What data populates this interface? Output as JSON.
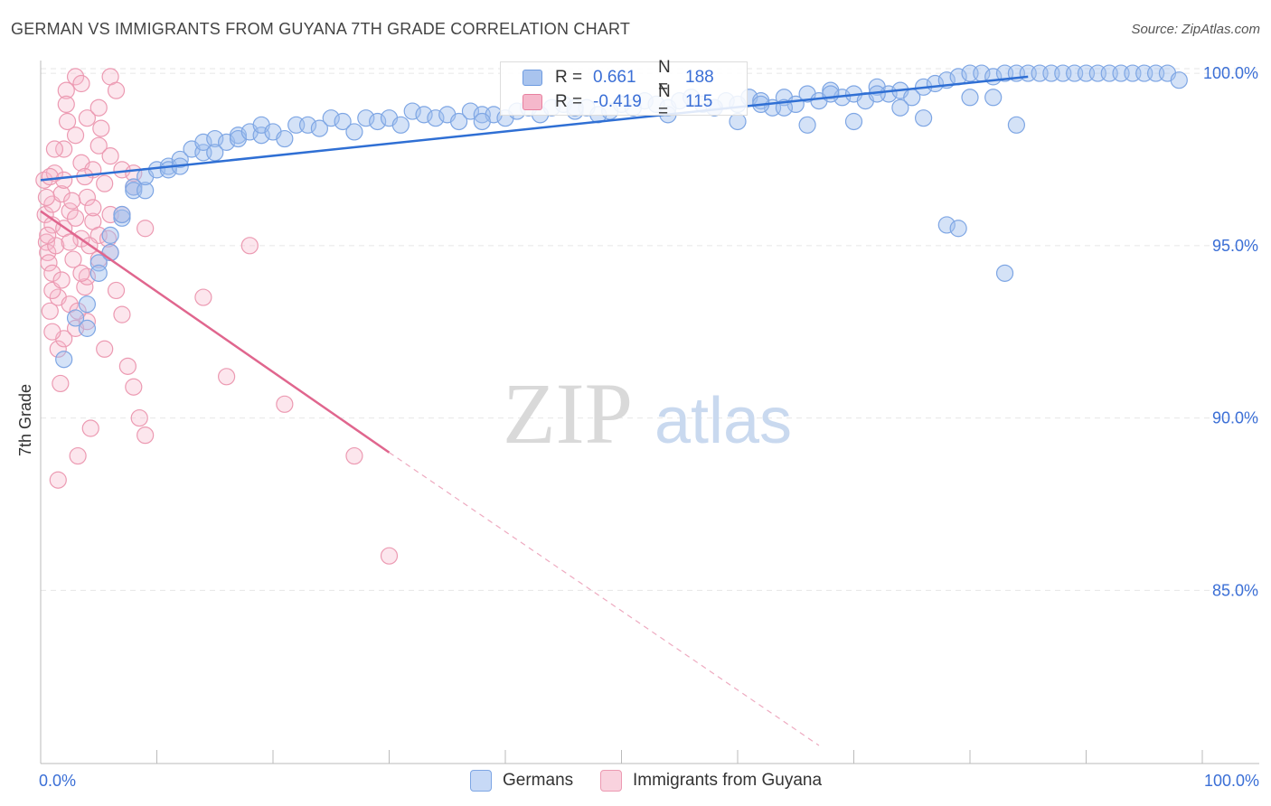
{
  "title": "GERMAN VS IMMIGRANTS FROM GUYANA 7TH GRADE CORRELATION CHART",
  "source": "Source: ZipAtlas.com",
  "watermark": {
    "zip": "ZIP",
    "atlas": "atlas"
  },
  "legend": {
    "rows": [
      {
        "r_label": "R =",
        "r_value": "0.661",
        "n_label": "N =",
        "n_value": "188",
        "color": "#a9c4ee",
        "stroke": "#6e9be0"
      },
      {
        "r_label": "R =",
        "r_value": "-0.419",
        "n_label": "N =",
        "n_value": "115",
        "color": "#f5b8cb",
        "stroke": "#e8809f"
      }
    ]
  },
  "bottom_legend": [
    {
      "label": "Germans",
      "color": "#c7d9f6",
      "stroke": "#7ea6e4"
    },
    {
      "label": "Immigrants from Guyana",
      "color": "#f9d2de",
      "stroke": "#ec9ab2"
    }
  ],
  "chart_data": {
    "type": "scatter",
    "title": "GERMAN VS IMMIGRANTS FROM GUYANA 7TH GRADE CORRELATION CHART",
    "xlabel": "",
    "ylabel": "7th Grade",
    "xlim": [
      0,
      100
    ],
    "ylim": [
      80.5,
      100.5
    ],
    "x_tick_labels": [
      "0.0%",
      "100.0%"
    ],
    "y_ticks": [
      85,
      90,
      95,
      100
    ],
    "y_tick_labels": [
      "85.0%",
      "90.0%",
      "95.0%",
      "100.0%"
    ],
    "series": [
      {
        "name": "Germans",
        "color": "#7ea6e4",
        "fill": "rgba(160,190,238,0.45)",
        "trend": {
          "x0": 0,
          "y0": 96.9,
          "x1": 85,
          "y1": 99.9,
          "dashed_to": null
        },
        "points": [
          [
            2,
            91.7
          ],
          [
            3,
            92.9
          ],
          [
            4,
            93.3
          ],
          [
            4,
            92.6
          ],
          [
            5,
            94.5
          ],
          [
            5,
            94.2
          ],
          [
            6,
            94.8
          ],
          [
            6,
            95.3
          ],
          [
            7,
            95.8
          ],
          [
            7,
            95.9
          ],
          [
            8,
            96.7
          ],
          [
            8,
            96.6
          ],
          [
            9,
            96.6
          ],
          [
            9,
            97.0
          ],
          [
            10,
            97.2
          ],
          [
            11,
            97.3
          ],
          [
            11,
            97.2
          ],
          [
            12,
            97.5
          ],
          [
            12,
            97.3
          ],
          [
            13,
            97.8
          ],
          [
            14,
            97.7
          ],
          [
            14,
            98.0
          ],
          [
            15,
            98.1
          ],
          [
            15,
            97.7
          ],
          [
            16,
            98.0
          ],
          [
            17,
            98.2
          ],
          [
            17,
            98.1
          ],
          [
            18,
            98.3
          ],
          [
            19,
            98.2
          ],
          [
            19,
            98.5
          ],
          [
            20,
            98.3
          ],
          [
            21,
            98.1
          ],
          [
            22,
            98.5
          ],
          [
            23,
            98.5
          ],
          [
            24,
            98.4
          ],
          [
            25,
            98.7
          ],
          [
            26,
            98.6
          ],
          [
            27,
            98.3
          ],
          [
            28,
            98.7
          ],
          [
            29,
            98.6
          ],
          [
            30,
            98.7
          ],
          [
            31,
            98.5
          ],
          [
            32,
            98.9
          ],
          [
            33,
            98.8
          ],
          [
            34,
            98.7
          ],
          [
            35,
            98.8
          ],
          [
            36,
            98.6
          ],
          [
            37,
            98.9
          ],
          [
            38,
            98.8
          ],
          [
            39,
            98.8
          ],
          [
            40,
            98.7
          ],
          [
            41,
            98.9
          ],
          [
            42,
            99.0
          ],
          [
            43,
            98.8
          ],
          [
            44,
            99.0
          ],
          [
            45,
            99.1
          ],
          [
            46,
            98.9
          ],
          [
            47,
            99.0
          ],
          [
            48,
            98.8
          ],
          [
            49,
            98.9
          ],
          [
            50,
            99.1
          ],
          [
            51,
            99.0
          ],
          [
            52,
            99.2
          ],
          [
            53,
            99.1
          ],
          [
            54,
            99.0
          ],
          [
            55,
            99.2
          ],
          [
            56,
            99.3
          ],
          [
            57,
            99.1
          ],
          [
            58,
            99.0
          ],
          [
            59,
            99.2
          ],
          [
            60,
            99.1
          ],
          [
            61,
            99.3
          ],
          [
            62,
            99.2
          ],
          [
            63,
            99.0
          ],
          [
            64,
            99.3
          ],
          [
            65,
            99.1
          ],
          [
            66,
            99.4
          ],
          [
            67,
            99.2
          ],
          [
            68,
            99.5
          ],
          [
            69,
            99.3
          ],
          [
            70,
            99.4
          ],
          [
            71,
            99.2
          ],
          [
            72,
            99.6
          ],
          [
            73,
            99.4
          ],
          [
            74,
            99.5
          ],
          [
            75,
            99.3
          ],
          [
            76,
            99.6
          ],
          [
            77,
            99.7
          ],
          [
            78,
            99.8
          ],
          [
            79,
            99.9
          ],
          [
            80,
            100
          ],
          [
            81,
            100
          ],
          [
            82,
            99.9
          ],
          [
            83,
            100
          ],
          [
            84,
            100
          ],
          [
            85,
            100
          ],
          [
            86,
            100
          ],
          [
            87,
            100
          ],
          [
            88,
            100
          ],
          [
            89,
            100
          ],
          [
            90,
            100
          ],
          [
            91,
            100
          ],
          [
            92,
            100
          ],
          [
            93,
            100
          ],
          [
            94,
            100
          ],
          [
            95,
            100
          ],
          [
            96,
            100
          ],
          [
            97,
            100
          ],
          [
            98,
            99.8
          ],
          [
            66,
            98.5
          ],
          [
            70,
            98.6
          ],
          [
            74,
            99.0
          ],
          [
            76,
            98.7
          ],
          [
            78,
            95.6
          ],
          [
            79,
            95.5
          ],
          [
            83,
            94.2
          ],
          [
            82,
            99.3
          ],
          [
            80,
            99.3
          ],
          [
            84,
            98.5
          ],
          [
            72,
            99.4
          ],
          [
            58,
            99.0
          ],
          [
            54,
            98.8
          ],
          [
            38,
            98.6
          ],
          [
            46,
            99.0
          ],
          [
            62,
            99.1
          ],
          [
            68,
            99.4
          ],
          [
            60,
            98.6
          ],
          [
            64,
            99.0
          ]
        ]
      },
      {
        "name": "Immigrants from Guyana",
        "color": "#ec9ab2",
        "fill": "rgba(245,184,203,0.35)",
        "trend": {
          "x0": 0,
          "y0": 96.0,
          "x1": 30,
          "y1": 89.0,
          "dashed_to": [
            67,
            80.5
          ]
        },
        "points": [
          [
            0.3,
            96.9
          ],
          [
            0.4,
            95.9
          ],
          [
            0.5,
            95.1
          ],
          [
            0.6,
            94.8
          ],
          [
            0.7,
            94.5
          ],
          [
            0.8,
            93.1
          ],
          [
            1,
            96.2
          ],
          [
            1,
            95.6
          ],
          [
            1,
            94.2
          ],
          [
            1.2,
            97.1
          ],
          [
            1.3,
            95.0
          ],
          [
            1.5,
            93.5
          ],
          [
            1.5,
            92.0
          ],
          [
            1.7,
            91.0
          ],
          [
            1.8,
            96.5
          ],
          [
            2,
            97.8
          ],
          [
            2,
            95.5
          ],
          [
            2,
            92.3
          ],
          [
            2.2,
            99.5
          ],
          [
            2.3,
            98.6
          ],
          [
            2.5,
            96.0
          ],
          [
            2.5,
            93.3
          ],
          [
            2.8,
            94.6
          ],
          [
            3,
            99.9
          ],
          [
            3,
            98.2
          ],
          [
            3,
            95.8
          ],
          [
            3,
            92.6
          ],
          [
            3.2,
            88.9
          ],
          [
            3.5,
            99.7
          ],
          [
            3.5,
            97.4
          ],
          [
            3.5,
            95.2
          ],
          [
            3.8,
            93.8
          ],
          [
            4,
            98.7
          ],
          [
            4,
            96.4
          ],
          [
            4,
            94.1
          ],
          [
            4,
            92.8
          ],
          [
            4.3,
            89.7
          ],
          [
            4.5,
            97.2
          ],
          [
            4.5,
            95.7
          ],
          [
            5,
            99.0
          ],
          [
            5,
            97.9
          ],
          [
            5,
            95.3
          ],
          [
            5,
            94.6
          ],
          [
            5.5,
            96.8
          ],
          [
            5.5,
            92.0
          ],
          [
            6,
            99.9
          ],
          [
            6,
            97.6
          ],
          [
            6,
            95.9
          ],
          [
            6.5,
            99.5
          ],
          [
            6.5,
            93.7
          ],
          [
            7,
            97.2
          ],
          [
            7,
            95.9
          ],
          [
            7.5,
            91.5
          ],
          [
            8,
            97.1
          ],
          [
            8,
            96.7
          ],
          [
            8,
            90.9
          ],
          [
            8.5,
            90.0
          ],
          [
            9,
            95.5
          ],
          [
            9,
            89.5
          ],
          [
            14,
            93.5
          ],
          [
            16,
            91.2
          ],
          [
            18,
            95.0
          ],
          [
            21,
            90.4
          ],
          [
            27,
            88.9
          ],
          [
            30,
            86.0
          ],
          [
            1.5,
            88.2
          ],
          [
            2,
            96.9
          ],
          [
            1,
            93.7
          ],
          [
            0.5,
            96.4
          ],
          [
            2.5,
            95.1
          ],
          [
            3.5,
            94.2
          ],
          [
            4.5,
            96.1
          ],
          [
            6,
            94.8
          ],
          [
            7,
            93.0
          ],
          [
            1,
            92.5
          ],
          [
            0.8,
            97.0
          ],
          [
            2.2,
            99.1
          ],
          [
            1.2,
            97.8
          ],
          [
            3.8,
            97.0
          ],
          [
            5.2,
            98.4
          ],
          [
            0.6,
            95.3
          ],
          [
            1.8,
            94.0
          ],
          [
            2.7,
            96.3
          ],
          [
            4.2,
            95.0
          ],
          [
            5.8,
            95.2
          ],
          [
            3.2,
            93.1
          ]
        ]
      }
    ]
  }
}
